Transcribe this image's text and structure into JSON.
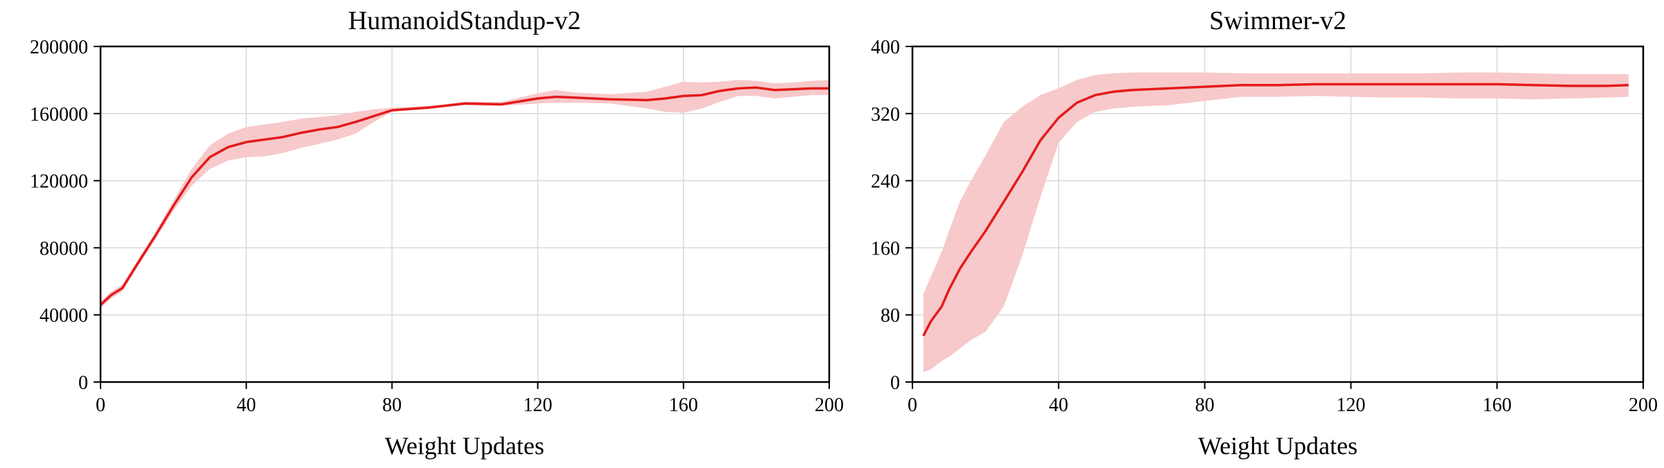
{
  "chart_data": [
    {
      "type": "line",
      "title": "HumanoidStandup-v2",
      "xlabel": "Weight Updates",
      "ylabel": "",
      "xlim": [
        0,
        200
      ],
      "ylim": [
        0,
        200000
      ],
      "xticks": [
        0,
        40,
        80,
        120,
        160,
        200
      ],
      "yticks": [
        0,
        40000,
        80000,
        120000,
        160000,
        200000
      ],
      "xtick_labels": [
        "0",
        "40",
        "80",
        "120",
        "160",
        "200"
      ],
      "ytick_labels": [
        "0",
        "40000",
        "80000",
        "120000",
        "160000",
        "200000"
      ],
      "grid": true,
      "line_color": "#e41a1c",
      "band_color": "#f7c9ca",
      "series": [
        {
          "x": [
            0,
            3,
            6,
            10,
            15,
            20,
            25,
            30,
            35,
            40,
            45,
            50,
            55,
            60,
            65,
            70,
            75,
            80,
            90,
            100,
            110,
            120,
            125,
            130,
            140,
            150,
            155,
            160,
            165,
            170,
            175,
            180,
            185,
            190,
            195,
            200
          ],
          "y": [
            46000,
            52000,
            56000,
            70000,
            87000,
            105000,
            122000,
            134000,
            140000,
            143000,
            144500,
            146000,
            148500,
            150500,
            152000,
            155000,
            158500,
            162000,
            163500,
            166000,
            165500,
            169000,
            170000,
            169500,
            168500,
            168000,
            169000,
            170500,
            171000,
            173500,
            175000,
            175500,
            174000,
            174500,
            175000,
            175000
          ],
          "lower": [
            44000,
            50000,
            54000,
            68000,
            85000,
            102000,
            117000,
            127000,
            132000,
            134000,
            134500,
            136500,
            139500,
            142000,
            144500,
            148000,
            155000,
            161000,
            163000,
            165000,
            164500,
            166000,
            166500,
            166500,
            166000,
            163000,
            161000,
            160500,
            163000,
            167000,
            170500,
            170500,
            169000,
            170000,
            171000,
            171000
          ],
          "upper": [
            48000,
            54000,
            58000,
            72000,
            89000,
            108000,
            127000,
            141000,
            148000,
            152000,
            153500,
            155000,
            157000,
            158000,
            159000,
            161000,
            162500,
            163500,
            164500,
            167000,
            167000,
            172000,
            174000,
            172500,
            171500,
            173000,
            176000,
            179000,
            178500,
            179000,
            180000,
            179500,
            178000,
            178500,
            179500,
            180000
          ]
        }
      ]
    },
    {
      "type": "line",
      "title": "Swimmer-v2",
      "xlabel": "Weight Updates",
      "ylabel": "",
      "xlim": [
        0,
        200
      ],
      "ylim": [
        0,
        400
      ],
      "xticks": [
        0,
        40,
        80,
        120,
        160,
        200
      ],
      "yticks": [
        0,
        80,
        160,
        240,
        320,
        400
      ],
      "xtick_labels": [
        "0",
        "40",
        "80",
        "120",
        "160",
        "200"
      ],
      "ytick_labels": [
        "0",
        "80",
        "160",
        "240",
        "320",
        "400"
      ],
      "grid": true,
      "line_color": "#e41a1c",
      "band_color": "#f7c9ca",
      "series": [
        {
          "x": [
            3,
            5,
            8,
            10,
            13,
            16,
            20,
            25,
            30,
            35,
            40,
            45,
            50,
            55,
            60,
            70,
            80,
            90,
            100,
            110,
            120,
            130,
            140,
            150,
            160,
            170,
            180,
            190,
            196
          ],
          "y": [
            55,
            72,
            90,
            110,
            135,
            155,
            180,
            215,
            250,
            288,
            315,
            333,
            342,
            346,
            348,
            350,
            352,
            354,
            354,
            355,
            355,
            355,
            355,
            355,
            355,
            354,
            353,
            353,
            354
          ],
          "lower": [
            12,
            15,
            25,
            30,
            40,
            50,
            60,
            90,
            150,
            220,
            285,
            310,
            322,
            326,
            328,
            330,
            335,
            340,
            340,
            341,
            340,
            339,
            339,
            338,
            338,
            337,
            338,
            339,
            340
          ],
          "upper": [
            105,
            125,
            155,
            180,
            215,
            240,
            270,
            310,
            328,
            342,
            350,
            360,
            366,
            368,
            369,
            369,
            369,
            368,
            368,
            368,
            368,
            368,
            368,
            369,
            369,
            368,
            367,
            367,
            367
          ]
        }
      ]
    }
  ]
}
